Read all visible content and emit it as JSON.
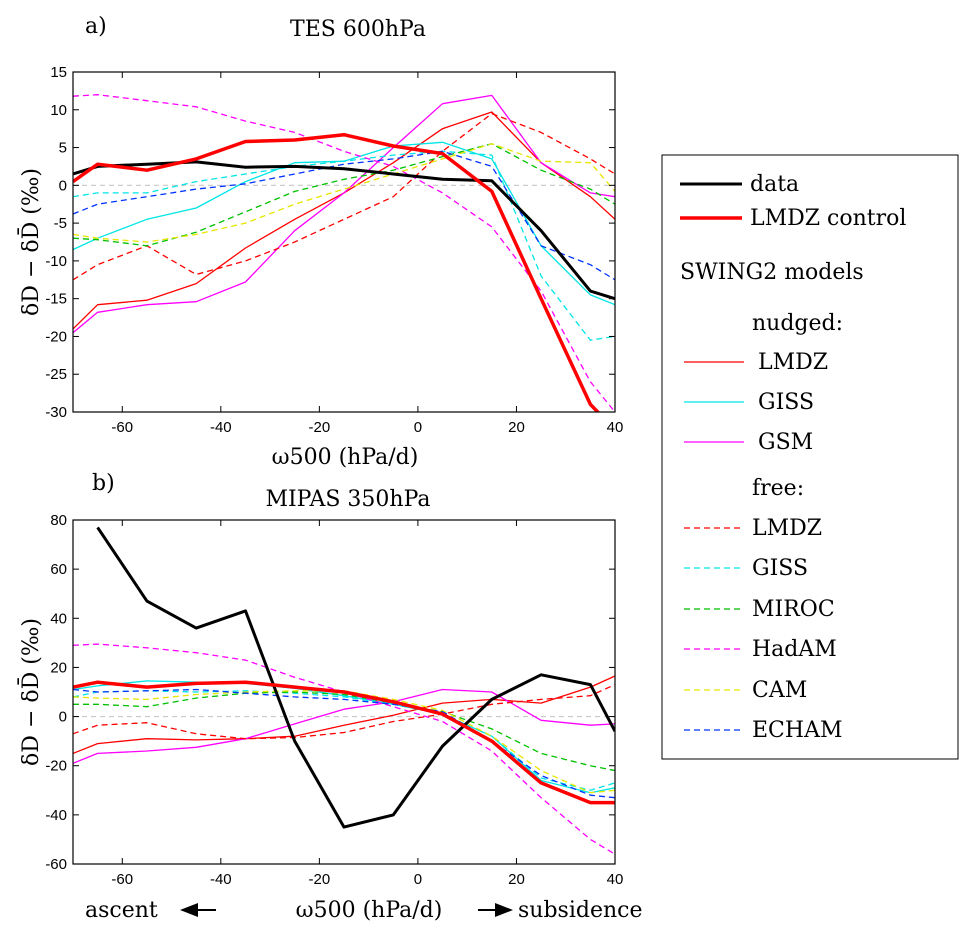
{
  "chart_data": [
    {
      "type": "line",
      "panel_label": "a)",
      "title": "TES 600hPa",
      "xlabel": "ω500 (hPa/d)",
      "ylabel": "δD − δD̄ (‰)",
      "xlim": [
        -70,
        40
      ],
      "ylim": [
        -30,
        15
      ],
      "xticks": [
        -60,
        -40,
        -20,
        0,
        20,
        40
      ],
      "yticks": [
        15,
        10,
        5,
        0,
        -5,
        -10,
        -15,
        -20,
        -25,
        -30
      ],
      "zero_line": true,
      "grid": false,
      "series": [
        {
          "name": "data",
          "color": "#000000",
          "dash": "solid",
          "width": 3,
          "x": [
            -70,
            -65,
            -55,
            -45,
            -35,
            -25,
            -15,
            -5,
            5,
            15,
            25,
            35,
            40
          ],
          "y": [
            1.5,
            2.5,
            2.8,
            3.1,
            2.4,
            2.5,
            2.2,
            1.5,
            0.8,
            0.6,
            -6,
            -14,
            -15
          ]
        },
        {
          "name": "LMDZ control",
          "color": "#ff0000",
          "dash": "solid",
          "width": 3.5,
          "x": [
            -70,
            -65,
            -55,
            -45,
            -35,
            -25,
            -15,
            -5,
            5,
            15,
            25,
            35,
            38
          ],
          "y": [
            0.5,
            2.8,
            2.0,
            3.5,
            5.8,
            6.0,
            6.7,
            5.2,
            4.2,
            -0.8,
            -15,
            -29,
            -31
          ]
        },
        {
          "name": "LMDZ",
          "group": "nudged",
          "color": "#ff0000",
          "dash": "solid",
          "width": 1.3,
          "x": [
            -70,
            -65,
            -55,
            -45,
            -35,
            -25,
            -15,
            -5,
            5,
            15,
            25,
            35,
            40
          ],
          "y": [
            -19,
            -15.8,
            -15.2,
            -13,
            -8.3,
            -4.5,
            -1,
            3,
            7.5,
            9.7,
            3,
            -1.5,
            -4.5
          ]
        },
        {
          "name": "GISS",
          "group": "nudged",
          "color": "#00e5e5",
          "dash": "solid",
          "width": 1.3,
          "x": [
            -70,
            -65,
            -55,
            -45,
            -35,
            -25,
            -15,
            -5,
            5,
            15,
            25,
            35,
            40
          ],
          "y": [
            -8.5,
            -7,
            -4.5,
            -3,
            0.5,
            3,
            3.2,
            5.2,
            5.7,
            3.5,
            -8,
            -14.5,
            -15.8
          ]
        },
        {
          "name": "GSM",
          "group": "nudged",
          "color": "#ff00ff",
          "dash": "solid",
          "width": 1.3,
          "x": [
            -70,
            -65,
            -55,
            -45,
            -35,
            -25,
            -15,
            -5,
            5,
            15,
            25,
            35,
            40
          ],
          "y": [
            -19.5,
            -16.8,
            -15.8,
            -15.4,
            -12.8,
            -6,
            -1,
            5,
            10.8,
            11.9,
            3,
            -1,
            -1.5
          ]
        },
        {
          "name": "LMDZ",
          "group": "free",
          "color": "#ff0000",
          "dash": "dashed",
          "width": 1.3,
          "x": [
            -70,
            -65,
            -55,
            -45,
            -35,
            -25,
            -15,
            -5,
            5,
            15,
            25,
            35,
            40
          ],
          "y": [
            -12.5,
            -10.5,
            -8,
            -11.8,
            -10,
            -7.5,
            -4.5,
            -1.5,
            4.5,
            9.5,
            7,
            3.5,
            1.5
          ]
        },
        {
          "name": "GISS",
          "group": "free",
          "color": "#00e5e5",
          "dash": "dashed",
          "width": 1.3,
          "x": [
            -70,
            -65,
            -55,
            -45,
            -35,
            -25,
            -15,
            -5,
            5,
            15,
            25,
            35,
            40
          ],
          "y": [
            -1.5,
            -1,
            -1,
            0.5,
            1.5,
            2.5,
            3.2,
            4,
            4.5,
            4,
            -12,
            -20.5,
            -20
          ]
        },
        {
          "name": "MIROC",
          "group": "free",
          "color": "#00c000",
          "dash": "dashed",
          "width": 1.3,
          "x": [
            -70,
            -65,
            -55,
            -45,
            -35,
            -25,
            -15,
            -5,
            5,
            15,
            25,
            35,
            40
          ],
          "y": [
            -7,
            -7.2,
            -8,
            -6.2,
            -3.5,
            -0.8,
            0.8,
            2,
            3.8,
            5.5,
            2,
            -0.5,
            -2.5
          ]
        },
        {
          "name": "HadAM",
          "group": "free",
          "color": "#ff00ff",
          "dash": "dashed",
          "width": 1.3,
          "x": [
            -70,
            -65,
            -55,
            -45,
            -35,
            -25,
            -15,
            -5,
            5,
            15,
            25,
            35,
            40
          ],
          "y": [
            11.8,
            12.0,
            11.2,
            10.4,
            8.5,
            7,
            4.5,
            2.5,
            -1,
            -5.5,
            -14,
            -26,
            -30
          ]
        },
        {
          "name": "CAM",
          "group": "free",
          "color": "#e6e600",
          "dash": "dashed",
          "width": 1.3,
          "x": [
            -70,
            -65,
            -55,
            -45,
            -35,
            -25,
            -15,
            -5,
            5,
            15,
            25,
            35,
            40
          ],
          "y": [
            -6.5,
            -7,
            -7.5,
            -6.5,
            -5,
            -2.5,
            -0.5,
            1.5,
            3.5,
            5.5,
            3.2,
            3.0,
            -0.8
          ]
        },
        {
          "name": "ECHAM",
          "group": "free",
          "color": "#0033ff",
          "dash": "dashed",
          "width": 1.3,
          "x": [
            -70,
            -65,
            -55,
            -45,
            -35,
            -25,
            -15,
            -5,
            5,
            15,
            25,
            35,
            40
          ],
          "y": [
            -3.8,
            -2.5,
            -1.5,
            -0.5,
            0.2,
            1.5,
            2.8,
            3.5,
            4.5,
            2.5,
            -8,
            -10.5,
            -12.5
          ]
        }
      ]
    },
    {
      "type": "line",
      "panel_label": "b)",
      "title": "MIPAS 350hPa",
      "xlabel": "ω500 (hPa/d)",
      "ylabel": "δD − δD̄ (‰)",
      "xlim": [
        -70,
        40
      ],
      "ylim": [
        -60,
        80
      ],
      "xticks": [
        -60,
        -40,
        -20,
        0,
        20,
        40
      ],
      "yticks": [
        80,
        60,
        40,
        20,
        0,
        -20,
        -40,
        -60
      ],
      "zero_line": true,
      "grid": false,
      "annotation_left": "ascent",
      "annotation_right": "subsidence",
      "series": [
        {
          "name": "data",
          "color": "#000000",
          "dash": "solid",
          "width": 3,
          "x": [
            -65,
            -55,
            -45,
            -35,
            -25,
            -15,
            -5,
            5,
            15,
            25,
            35,
            40
          ],
          "y": [
            77,
            47,
            36,
            43,
            -10,
            -45,
            -40,
            -12,
            7,
            17,
            13,
            -6
          ]
        },
        {
          "name": "LMDZ control",
          "color": "#ff0000",
          "dash": "solid",
          "width": 3.5,
          "x": [
            -70,
            -65,
            -55,
            -45,
            -35,
            -25,
            -15,
            -5,
            5,
            15,
            25,
            35,
            40
          ],
          "y": [
            12,
            14,
            12,
            13.5,
            14,
            12,
            10,
            6,
            1,
            -10,
            -27,
            -35,
            -35
          ]
        },
        {
          "name": "LMDZ",
          "group": "nudged",
          "color": "#ff0000",
          "dash": "solid",
          "width": 1.3,
          "x": [
            -70,
            -65,
            -55,
            -45,
            -35,
            -25,
            -15,
            -5,
            5,
            15,
            25,
            35,
            40
          ],
          "y": [
            -15,
            -11,
            -9,
            -9.5,
            -9,
            -8,
            -3.5,
            0.5,
            5.5,
            7,
            5.5,
            12,
            16.5
          ]
        },
        {
          "name": "GISS",
          "group": "nudged",
          "color": "#00e5e5",
          "dash": "solid",
          "width": 1.3,
          "x": [
            -70,
            -65,
            -55,
            -45,
            -35,
            -25,
            -15,
            -5,
            5,
            15,
            25,
            35,
            40
          ],
          "y": [
            11,
            12.5,
            14.5,
            14,
            13.5,
            11.5,
            8.5,
            5,
            1,
            -8,
            -26,
            -31,
            -29
          ]
        },
        {
          "name": "GSM",
          "group": "nudged",
          "color": "#ff00ff",
          "dash": "solid",
          "width": 1.3,
          "x": [
            -70,
            -65,
            -55,
            -45,
            -35,
            -25,
            -15,
            -5,
            5,
            15,
            25,
            35,
            40
          ],
          "y": [
            -19,
            -15,
            -14,
            -12.5,
            -9,
            -3,
            3,
            6,
            11,
            10,
            -1.5,
            -3.5,
            -3
          ]
        },
        {
          "name": "LMDZ",
          "group": "free",
          "color": "#ff0000",
          "dash": "dashed",
          "width": 1.3,
          "x": [
            -70,
            -65,
            -55,
            -45,
            -35,
            -25,
            -15,
            -5,
            5,
            15,
            25,
            35,
            40
          ],
          "y": [
            -7,
            -3.5,
            -2.5,
            -7,
            -9,
            -8.5,
            -6.5,
            -2,
            1,
            5,
            7,
            8.5,
            13
          ]
        },
        {
          "name": "GISS",
          "group": "free",
          "color": "#00e5e5",
          "dash": "dashed",
          "width": 1.3,
          "x": [
            -70,
            -65,
            -55,
            -45,
            -35,
            -25,
            -15,
            -5,
            5,
            15,
            25,
            35,
            40
          ],
          "y": [
            8,
            10,
            10.5,
            10,
            10.5,
            9.5,
            8,
            5,
            1,
            -8,
            -25,
            -30,
            -27
          ]
        },
        {
          "name": "MIROC",
          "group": "free",
          "color": "#00c000",
          "dash": "dashed",
          "width": 1.3,
          "x": [
            -70,
            -65,
            -55,
            -45,
            -35,
            -25,
            -15,
            -5,
            5,
            15,
            25,
            35,
            40
          ],
          "y": [
            5,
            5,
            4,
            7.5,
            9.5,
            10,
            9,
            5.5,
            2,
            -5,
            -15,
            -20,
            -22
          ]
        },
        {
          "name": "HadAM",
          "group": "free",
          "color": "#ff00ff",
          "dash": "dashed",
          "width": 1.3,
          "x": [
            -70,
            -65,
            -55,
            -45,
            -35,
            -25,
            -15,
            -5,
            5,
            15,
            25,
            35,
            40
          ],
          "y": [
            29,
            29.5,
            28,
            26,
            23,
            16,
            10,
            4,
            -2,
            -14,
            -33,
            -50,
            -56
          ]
        },
        {
          "name": "CAM",
          "group": "free",
          "color": "#e6e600",
          "dash": "dashed",
          "width": 1.3,
          "x": [
            -70,
            -65,
            -55,
            -45,
            -35,
            -25,
            -15,
            -5,
            5,
            15,
            25,
            35,
            40
          ],
          "y": [
            8,
            7.5,
            7,
            9,
            10,
            10.5,
            10.5,
            7,
            2.5,
            -8,
            -22,
            -31,
            -30
          ]
        },
        {
          "name": "ECHAM",
          "group": "free",
          "color": "#0033ff",
          "dash": "dashed",
          "width": 1.3,
          "x": [
            -70,
            -65,
            -55,
            -45,
            -35,
            -25,
            -15,
            -5,
            5,
            15,
            25,
            35,
            40
          ],
          "y": [
            11,
            10,
            10.5,
            11,
            9.5,
            8,
            7,
            5,
            2,
            -10,
            -24,
            -32,
            -33
          ]
        }
      ]
    }
  ],
  "legend": {
    "placement": "right",
    "entries": [
      {
        "label": "data",
        "color": "#000000",
        "dash": "solid",
        "width": 3
      },
      {
        "label": "LMDZ control",
        "color": "#ff0000",
        "dash": "solid",
        "width": 3.5
      },
      {
        "heading": "SWING2 models"
      },
      {
        "heading": "nudged:"
      },
      {
        "label": "LMDZ",
        "color": "#ff0000",
        "dash": "solid",
        "width": 1.3
      },
      {
        "label": "GISS",
        "color": "#00e5e5",
        "dash": "solid",
        "width": 1.3
      },
      {
        "label": "GSM",
        "color": "#ff00ff",
        "dash": "solid",
        "width": 1.3
      },
      {
        "heading": "free:"
      },
      {
        "label": "LMDZ",
        "color": "#ff0000",
        "dash": "dashed",
        "width": 1.3
      },
      {
        "label": "GISS",
        "color": "#00e5e5",
        "dash": "dashed",
        "width": 1.3
      },
      {
        "label": "MIROC",
        "color": "#00c000",
        "dash": "dashed",
        "width": 1.3
      },
      {
        "label": "HadAM",
        "color": "#ff00ff",
        "dash": "dashed",
        "width": 1.3
      },
      {
        "label": "CAM",
        "color": "#e6e600",
        "dash": "dashed",
        "width": 1.3
      },
      {
        "label": "ECHAM",
        "color": "#0033ff",
        "dash": "dashed",
        "width": 1.3
      }
    ]
  }
}
